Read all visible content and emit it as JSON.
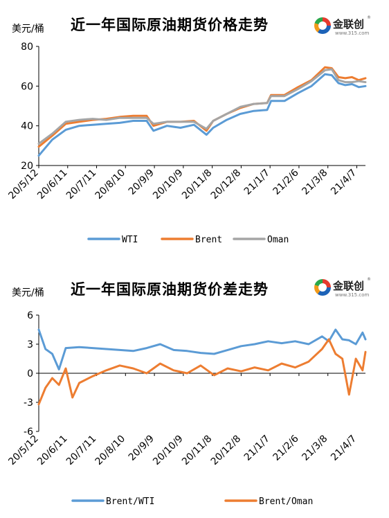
{
  "chart_data": [
    {
      "type": "line",
      "title": "近一年国际原油期货价格走势",
      "unit_label": "美元/桶",
      "ylim": [
        20,
        80
      ],
      "yticks": [
        20,
        40,
        60,
        80
      ],
      "x_range": [
        "2020-05-12",
        "2021-04-16"
      ],
      "xticks": [
        {
          "label": "20/5/12",
          "date": "2020-05-12"
        },
        {
          "label": "20/6/11",
          "date": "2020-06-11"
        },
        {
          "label": "20/7/11",
          "date": "2020-07-11"
        },
        {
          "label": "20/8/10",
          "date": "2020-08-10"
        },
        {
          "label": "20/9/9",
          "date": "2020-09-09"
        },
        {
          "label": "20/10/9",
          "date": "2020-10-09"
        },
        {
          "label": "20/11/8",
          "date": "2020-11-08"
        },
        {
          "label": "20/12/8",
          "date": "2020-12-08"
        },
        {
          "label": "21/1/7",
          "date": "2021-01-07"
        },
        {
          "label": "21/2/6",
          "date": "2021-02-06"
        },
        {
          "label": "21/3/8",
          "date": "2021-03-08"
        },
        {
          "label": "21/4/7",
          "date": "2021-04-07"
        }
      ],
      "legend_position": "bottom",
      "grid": false,
      "series": [
        {
          "name": "WTI",
          "color": "#5b9bd5",
          "x": [
            "2020-05-12",
            "2020-05-26",
            "2020-06-09",
            "2020-06-23",
            "2020-07-07",
            "2020-07-21",
            "2020-08-04",
            "2020-08-18",
            "2020-09-01",
            "2020-09-08",
            "2020-09-22",
            "2020-10-06",
            "2020-10-20",
            "2020-11-02",
            "2020-11-09",
            "2020-11-23",
            "2020-12-07",
            "2020-12-21",
            "2021-01-04",
            "2021-01-08",
            "2021-01-22",
            "2021-02-05",
            "2021-02-19",
            "2021-03-05",
            "2021-03-12",
            "2021-03-19",
            "2021-03-26",
            "2021-04-02",
            "2021-04-09",
            "2021-04-16"
          ],
          "y": [
            25,
            33,
            38,
            40,
            40.5,
            41,
            41.5,
            42.5,
            42.5,
            37.5,
            40,
            39,
            40.5,
            35.5,
            39,
            43,
            46,
            47.5,
            48,
            52.5,
            52.5,
            56.5,
            60,
            66,
            65.5,
            61.5,
            60.5,
            61,
            59.5,
            60
          ]
        },
        {
          "name": "Brent",
          "color": "#ed7d31",
          "x": [
            "2020-05-12",
            "2020-05-26",
            "2020-06-09",
            "2020-06-23",
            "2020-07-07",
            "2020-07-21",
            "2020-08-04",
            "2020-08-18",
            "2020-09-01",
            "2020-09-08",
            "2020-09-22",
            "2020-10-06",
            "2020-10-20",
            "2020-11-02",
            "2020-11-09",
            "2020-11-23",
            "2020-12-07",
            "2020-12-21",
            "2021-01-04",
            "2021-01-08",
            "2021-01-22",
            "2021-02-05",
            "2021-02-19",
            "2021-03-05",
            "2021-03-12",
            "2021-03-19",
            "2021-03-26",
            "2021-04-02",
            "2021-04-09",
            "2021-04-16"
          ],
          "y": [
            29.5,
            35,
            41,
            42,
            43,
            43.5,
            44.5,
            45,
            45,
            40,
            42,
            42,
            42.5,
            37.5,
            42.5,
            46,
            49,
            51,
            51.5,
            55.5,
            55.5,
            59.5,
            63,
            69.5,
            69,
            64.5,
            64,
            64.5,
            63,
            64
          ]
        },
        {
          "name": "Oman",
          "color": "#a5a5a5",
          "x": [
            "2020-05-12",
            "2020-05-26",
            "2020-06-09",
            "2020-06-23",
            "2020-07-07",
            "2020-07-21",
            "2020-08-04",
            "2020-08-18",
            "2020-09-01",
            "2020-09-08",
            "2020-09-22",
            "2020-10-06",
            "2020-10-20",
            "2020-11-02",
            "2020-11-09",
            "2020-11-23",
            "2020-12-07",
            "2020-12-21",
            "2021-01-04",
            "2021-01-08",
            "2021-01-22",
            "2021-02-05",
            "2021-02-19",
            "2021-03-05",
            "2021-03-12",
            "2021-03-19",
            "2021-03-26",
            "2021-04-02",
            "2021-04-09",
            "2021-04-16"
          ],
          "y": [
            31,
            36,
            42,
            43,
            43.5,
            43,
            44,
            44,
            44,
            41,
            42,
            42,
            42,
            38.5,
            42.5,
            46,
            49.5,
            51,
            51.5,
            55,
            55,
            58.5,
            62.5,
            68,
            68.5,
            63,
            62,
            62,
            62.5,
            62
          ]
        }
      ]
    },
    {
      "type": "line",
      "title": "近一年国际原油期货价差走势",
      "unit_label": "美元/桶",
      "ylim": [
        -6,
        6
      ],
      "yticks": [
        -6,
        -3,
        0,
        3,
        6
      ],
      "x_range": [
        "2020-05-12",
        "2021-04-16"
      ],
      "xticks": [
        {
          "label": "20/5/12",
          "date": "2020-05-12"
        },
        {
          "label": "20/6/11",
          "date": "2020-06-11"
        },
        {
          "label": "20/7/11",
          "date": "2020-07-11"
        },
        {
          "label": "20/8/10",
          "date": "2020-08-10"
        },
        {
          "label": "20/9/9",
          "date": "2020-09-09"
        },
        {
          "label": "20/10/9",
          "date": "2020-10-09"
        },
        {
          "label": "20/11/8",
          "date": "2020-11-08"
        },
        {
          "label": "20/12/8",
          "date": "2020-12-08"
        },
        {
          "label": "21/1/7",
          "date": "2021-01-07"
        },
        {
          "label": "21/2/6",
          "date": "2021-02-06"
        },
        {
          "label": "21/3/8",
          "date": "2021-03-08"
        },
        {
          "label": "21/4/7",
          "date": "2021-04-07"
        }
      ],
      "legend_position": "bottom",
      "grid": false,
      "series": [
        {
          "name": "Brent/WTI",
          "color": "#5b9bd5",
          "x": [
            "2020-05-12",
            "2020-05-19",
            "2020-05-26",
            "2020-06-02",
            "2020-06-09",
            "2020-06-23",
            "2020-07-07",
            "2020-07-21",
            "2020-08-04",
            "2020-08-18",
            "2020-09-01",
            "2020-09-15",
            "2020-09-29",
            "2020-10-13",
            "2020-10-27",
            "2020-11-10",
            "2020-11-24",
            "2020-12-08",
            "2020-12-22",
            "2021-01-05",
            "2021-01-19",
            "2021-02-02",
            "2021-02-16",
            "2021-03-02",
            "2021-03-09",
            "2021-03-16",
            "2021-03-23",
            "2021-03-30",
            "2021-04-06",
            "2021-04-13",
            "2021-04-16"
          ],
          "y": [
            4.5,
            2.5,
            2.0,
            0.4,
            2.6,
            2.7,
            2.6,
            2.5,
            2.4,
            2.3,
            2.6,
            3.0,
            2.4,
            2.3,
            2.1,
            2.0,
            2.4,
            2.8,
            3.0,
            3.3,
            3.1,
            3.3,
            3.0,
            3.8,
            3.3,
            4.5,
            3.5,
            3.4,
            3.0,
            4.2,
            3.5
          ]
        },
        {
          "name": "Brent/Oman",
          "color": "#ed7d31",
          "x": [
            "2020-05-12",
            "2020-05-19",
            "2020-05-26",
            "2020-06-02",
            "2020-06-09",
            "2020-06-16",
            "2020-06-23",
            "2020-07-07",
            "2020-07-21",
            "2020-08-04",
            "2020-08-18",
            "2020-09-01",
            "2020-09-15",
            "2020-09-29",
            "2020-10-13",
            "2020-10-27",
            "2020-11-10",
            "2020-11-24",
            "2020-12-08",
            "2020-12-22",
            "2021-01-05",
            "2021-01-19",
            "2021-02-02",
            "2021-02-16",
            "2021-03-02",
            "2021-03-09",
            "2021-03-16",
            "2021-03-23",
            "2021-03-30",
            "2021-04-06",
            "2021-04-13",
            "2021-04-16"
          ],
          "y": [
            -3.2,
            -1.5,
            -0.5,
            -1.2,
            0.5,
            -2.5,
            -1.0,
            -0.3,
            0.3,
            0.8,
            0.5,
            0.0,
            1.0,
            0.3,
            0.0,
            0.8,
            -0.2,
            0.5,
            0.2,
            0.6,
            0.3,
            1.0,
            0.6,
            1.2,
            2.5,
            3.5,
            2.0,
            1.5,
            -2.2,
            1.5,
            0.3,
            2.2
          ]
        }
      ]
    }
  ],
  "logo": {
    "text": "金联创",
    "sub": "www.315.com",
    "reg": "®"
  }
}
